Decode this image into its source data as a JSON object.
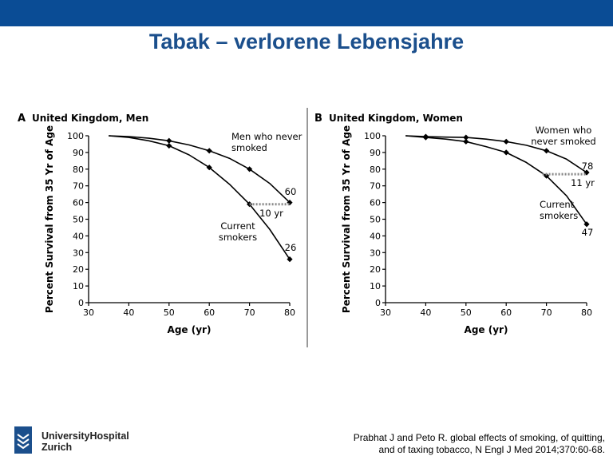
{
  "slide": {
    "title": "Tabak – verlorene Lebensjahre",
    "citation_line1": "Prabhat J and  Peto R. global effects of smoking, of quitting,",
    "citation_line2": "and of taxing tobacco, N Engl J Med 2014;370:60-68.",
    "logo_line1": "UniversityHospital",
    "logo_line2": "Zurich",
    "colors": {
      "topbar": "#0a4c95",
      "title": "#1b4f8c"
    }
  },
  "chart_data": [
    {
      "type": "line",
      "panel": "A",
      "title": "United Kingdom, Men",
      "xlabel": "Age (yr)",
      "ylabel": "Percent Survival from 35 Yr of Age",
      "xlim": [
        30,
        80
      ],
      "ylim": [
        0,
        100
      ],
      "xticks": [
        30,
        40,
        50,
        60,
        70,
        80
      ],
      "yticks": [
        0,
        10,
        20,
        30,
        40,
        50,
        60,
        70,
        80,
        90,
        100
      ],
      "grid": false,
      "series": [
        {
          "name": "Men who never smoked",
          "x": [
            35,
            50,
            60,
            70,
            80
          ],
          "y": [
            100,
            97,
            91,
            80,
            60
          ]
        },
        {
          "name": "Current smokers",
          "x": [
            35,
            50,
            60,
            70,
            80
          ],
          "y": [
            100,
            94,
            81,
            59,
            26
          ]
        }
      ],
      "curves": [
        {
          "x": [
            35,
            40,
            45,
            50,
            55,
            60,
            65,
            70,
            75,
            80
          ],
          "y": [
            100,
            99.5,
            98.5,
            97,
            94.5,
            91,
            86.5,
            80,
            71.5,
            60
          ]
        },
        {
          "x": [
            35,
            40,
            45,
            50,
            55,
            60,
            65,
            70,
            75,
            80
          ],
          "y": [
            100,
            99,
            97,
            94,
            88.5,
            81,
            71,
            59,
            44,
            26
          ]
        }
      ],
      "series_labels": [
        "Men who never\nsmoked",
        "Current\nsmokers"
      ],
      "end_labels": [
        "60",
        "26"
      ],
      "gap": {
        "label": "10 yr",
        "from_age": 70,
        "to_age": 80,
        "value": 59
      }
    },
    {
      "type": "line",
      "panel": "B",
      "title": "United Kingdom, Women",
      "xlabel": "Age (yr)",
      "ylabel": "Percent Survival from 35 Yr of Age",
      "xlim": [
        30,
        80
      ],
      "ylim": [
        0,
        100
      ],
      "xticks": [
        30,
        40,
        50,
        60,
        70,
        80
      ],
      "yticks": [
        0,
        10,
        20,
        30,
        40,
        50,
        60,
        70,
        80,
        90,
        100
      ],
      "grid": false,
      "series": [
        {
          "name": "Women who never smoked",
          "x": [
            35,
            40,
            50,
            60,
            70,
            80
          ],
          "y": [
            100,
            99.5,
            99,
            96.5,
            91,
            78
          ]
        },
        {
          "name": "Current smokers",
          "x": [
            35,
            40,
            50,
            60,
            70,
            80
          ],
          "y": [
            100,
            99,
            96.5,
            90,
            76,
            47
          ]
        }
      ],
      "curves": [
        {
          "x": [
            35,
            40,
            45,
            50,
            55,
            60,
            65,
            70,
            75,
            80
          ],
          "y": [
            100,
            99.5,
            99.2,
            99,
            98,
            96.5,
            94.3,
            91,
            86,
            78
          ]
        },
        {
          "x": [
            35,
            40,
            45,
            50,
            55,
            60,
            65,
            70,
            75,
            80
          ],
          "y": [
            100,
            99,
            98,
            96.5,
            93.5,
            90,
            84,
            76,
            64,
            47
          ]
        }
      ],
      "series_labels": [
        "Women who\nnever smoked",
        "Current\nsmokers"
      ],
      "end_labels": [
        "78",
        "47"
      ],
      "gap": {
        "label": "11 yr",
        "from_age": 69,
        "to_age": 80,
        "value": 77
      }
    }
  ]
}
